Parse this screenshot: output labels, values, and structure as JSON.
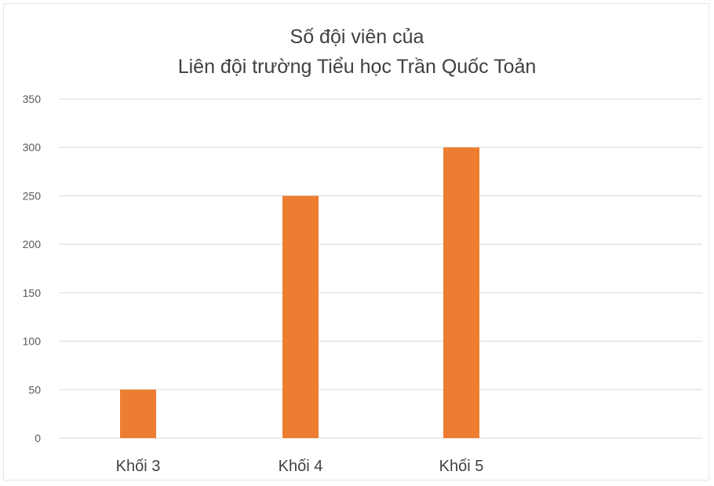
{
  "chart_data": {
    "type": "bar",
    "title_lines": [
      "Số đội viên của",
      "Liên đội trường Tiểu học Trần Quốc Toản"
    ],
    "categories": [
      "Khối 3",
      "Khối 4",
      "Khối 5"
    ],
    "values": [
      50,
      250,
      300
    ],
    "ylim": [
      0,
      350
    ],
    "yticks": [
      0,
      50,
      100,
      150,
      200,
      250,
      300,
      350
    ],
    "grid": true,
    "bar_color": "#ed7d31",
    "grid_color": "#d9d9d9"
  }
}
